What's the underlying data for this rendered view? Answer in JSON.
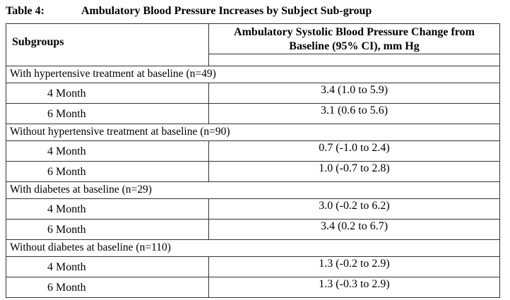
{
  "title": {
    "label": "Table 4:",
    "text": "Ambulatory Blood Pressure Increases by Subject Sub-group"
  },
  "table": {
    "header": {
      "subgroups": "Subgroups",
      "value": "Ambulatory Systolic Blood Pressure Change from Baseline (95% CI), mm Hg"
    },
    "groups": [
      {
        "label": "With hypertensive treatment at baseline (n=49)",
        "rows": [
          {
            "period": "4 Month",
            "value": "3.4 (1.0 to 5.9)"
          },
          {
            "period": "6 Month",
            "value": "3.1 (0.6 to 5.6)"
          }
        ]
      },
      {
        "label": "Without hypertensive treatment at baseline (n=90)",
        "rows": [
          {
            "period": "4 Month",
            "value": "0.7 (-1.0 to 2.4)"
          },
          {
            "period": "6 Month",
            "value": "1.0 (-0.7 to 2.8)"
          }
        ]
      },
      {
        "label": "With diabetes at baseline (n=29)",
        "rows": [
          {
            "period": "4 Month",
            "value": "3.0 (-0.2 to 6.2)"
          },
          {
            "period": "6 Month",
            "value": "3.4 (0.2 to 6.7)"
          }
        ]
      },
      {
        "label": "Without diabetes at baseline (n=110)",
        "rows": [
          {
            "period": "4 Month",
            "value": "1.3 (-0.2 to 2.9)"
          },
          {
            "period": "6 Month",
            "value": "1.3 (-0.3 to 2.9)"
          }
        ]
      }
    ]
  }
}
